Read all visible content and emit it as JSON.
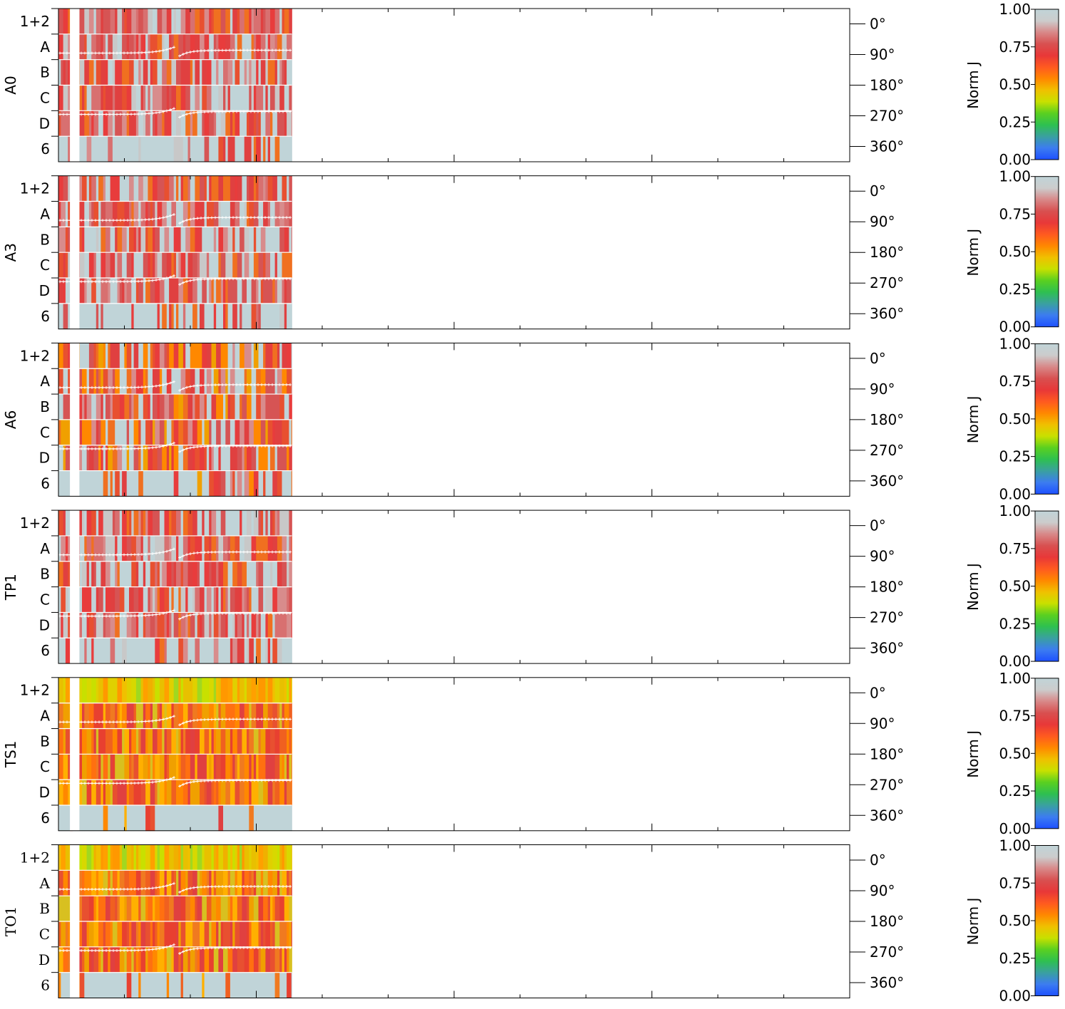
{
  "chart_data": {
    "type": "heatmap",
    "row_labels": [
      "1+2",
      "A",
      "B",
      "C",
      "D",
      "6"
    ],
    "right_axis": {
      "tick_labels": [
        "0°",
        "90°",
        "180°",
        "270°",
        "360°"
      ],
      "range": [
        -45,
        405
      ]
    },
    "colorbar": {
      "label": "Norm J",
      "tick_labels": [
        "0.00",
        "0.25",
        "0.50",
        "0.75",
        "1.00"
      ],
      "range": [
        0,
        1
      ],
      "colors": [
        "#1e50ff",
        "#3c7cf0",
        "#3aa0a0",
        "#2ec050",
        "#5ad020",
        "#c8e000",
        "#f0c000",
        "#ff8800",
        "#ff5a20",
        "#e83838",
        "#d85050",
        "#d88888",
        "#cccccc",
        "#c0d4d8"
      ]
    },
    "x_range": [
      0,
      100
    ],
    "data_extent": 29.5,
    "gap_start": 1.45,
    "gap_end": 2.65,
    "panels": [
      {
        "name": "A0",
        "profile": "gray",
        "label_style": "sans"
      },
      {
        "name": "A3",
        "profile": "gray",
        "label_style": "sans"
      },
      {
        "name": "A6",
        "profile": "mixed",
        "label_style": "sans"
      },
      {
        "name": "TP1",
        "profile": "gray",
        "label_style": "sans"
      },
      {
        "name": "TS1",
        "profile": "warm",
        "label_style": "sans"
      },
      {
        "name": "TO1",
        "profile": "warm",
        "label_style": "serif"
      }
    ],
    "phase_lines": [
      {
        "name": "phase-upper",
        "level": 90
      },
      {
        "name": "phase-lower",
        "level": 270
      }
    ]
  }
}
